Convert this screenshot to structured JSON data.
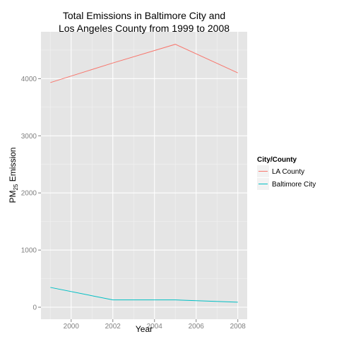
{
  "chart_data": {
    "type": "line",
    "title_line1": "Total Emissions in Baltimore City and",
    "title_line2": "Los Angeles County from 1999 to 2008",
    "xlabel": "Year",
    "ylabel_main": "PM",
    "ylabel_sub": "25",
    "ylabel_tail": " Emission",
    "x": [
      1999,
      2002,
      2005,
      2008
    ],
    "xlim": [
      1998.55,
      2008.45
    ],
    "ylim": [
      -210,
      4820
    ],
    "xticks": [
      2000,
      2002,
      2004,
      2006,
      2008
    ],
    "yticks": [
      0,
      1000,
      2000,
      3000,
      4000
    ],
    "grid": true,
    "legend_title": "City/County",
    "legend_position": "right",
    "series": [
      {
        "name": "LA County",
        "color": "#F8766D",
        "values": [
          3931,
          4274,
          4601,
          4101
        ]
      },
      {
        "name": "Baltimore City",
        "color": "#00BFC4",
        "values": [
          347,
          128,
          128,
          88
        ]
      }
    ]
  }
}
